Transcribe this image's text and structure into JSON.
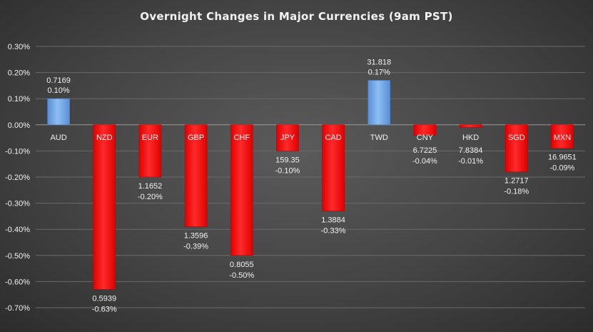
{
  "chart_data": {
    "type": "bar",
    "title": "Overnight Changes in Major Currencies (9am PST)",
    "xlabel": "",
    "ylabel": "",
    "categories": [
      "AUD",
      "NZD",
      "EUR",
      "GBP",
      "CHF",
      "JPY",
      "CAD",
      "TWD",
      "CNY",
      "HKD",
      "SGD",
      "MXN"
    ],
    "values": [
      0.1,
      -0.63,
      -0.2,
      -0.39,
      -0.5,
      -0.1,
      -0.33,
      0.17,
      -0.04,
      -0.01,
      -0.18,
      -0.09
    ],
    "rates": [
      "0.7169",
      "0.5939",
      "1.1652",
      "1.3596",
      "0.8055",
      "159.35",
      "1.3884",
      "31.818",
      "6.7225",
      "7.8384",
      "1.2717",
      "16.9651"
    ],
    "value_labels": [
      "0.10%",
      "-0.63%",
      "-0.20%",
      "-0.39%",
      "-0.50%",
      "-0.10%",
      "-0.33%",
      "0.17%",
      "-0.04%",
      "-0.01%",
      "-0.18%",
      "-0.09%"
    ],
    "ylim": [
      -0.7,
      0.3
    ],
    "yticks": [
      0.3,
      0.2,
      0.1,
      0.0,
      -0.1,
      -0.2,
      -0.3,
      -0.4,
      -0.5,
      -0.6,
      -0.7
    ],
    "ytick_labels": [
      "0.30%",
      "0.20%",
      "0.10%",
      "0.00%",
      "-0.10%",
      "-0.20%",
      "-0.30%",
      "-0.40%",
      "-0.50%",
      "-0.60%",
      "-0.70%"
    ],
    "grid": true,
    "legend": "none",
    "colors": {
      "positive": "#6ea6e8",
      "negative": "#ff1010",
      "text": "#f2f2f2",
      "grid": "#6a6a6a"
    }
  }
}
